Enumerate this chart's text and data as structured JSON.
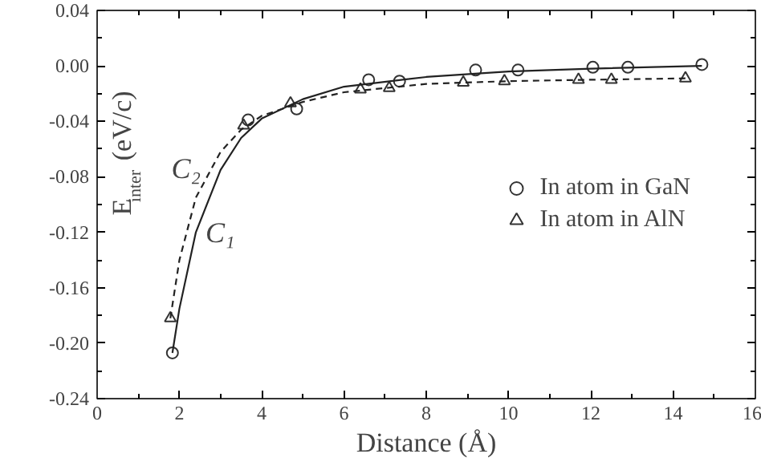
{
  "chart_data": {
    "type": "scatter",
    "xlabel": "Distance (Å)",
    "ylabel": "E$_{inter}$ (eV/c)",
    "xlim": [
      0,
      16
    ],
    "xticks": [
      0,
      2,
      4,
      6,
      8,
      10,
      12,
      14,
      16
    ],
    "ylim": [
      -0.24,
      0.04
    ],
    "yticks": [
      {
        "value": -0.24,
        "label": "-0.24"
      },
      {
        "value": -0.2,
        "label": "-0.20"
      },
      {
        "value": -0.16,
        "label": "-0.16"
      },
      {
        "value": -0.12,
        "label": "-0.12"
      },
      {
        "value": -0.08,
        "label": "-0.08"
      },
      {
        "value": -0.04,
        "label": "-0.04"
      },
      {
        "value": 0,
        "label": "0.00"
      },
      {
        "value": 0.04,
        "label": "0.04"
      }
    ],
    "grid": false,
    "legend": "right",
    "series": [
      {
        "name": "In atom in GaN",
        "color": "#333333",
        "marker": "circle",
        "x": [
          1.83,
          3.67,
          4.85,
          6.6,
          7.35,
          9.2,
          10.23,
          12.05,
          12.9,
          14.7
        ],
        "values": [
          -0.207,
          -0.039,
          -0.031,
          -0.01,
          -0.011,
          -0.003,
          -0.003,
          -0.001,
          -0.001,
          0.001
        ]
      },
      {
        "name": "In atom in AlN",
        "color": "#333333",
        "marker": "triangle",
        "x": [
          1.78,
          3.56,
          4.7,
          6.4,
          7.1,
          8.9,
          9.9,
          11.7,
          12.5,
          14.3
        ],
        "values": [
          -0.182,
          -0.043,
          -0.027,
          -0.017,
          -0.016,
          -0.012,
          -0.011,
          -0.01,
          -0.01,
          -0.009
        ]
      },
      {
        "type": "line",
        "color": "#222222",
        "line_style": "solid",
        "x": [
          1.83,
          2.0,
          2.4,
          3.0,
          3.5,
          4.0,
          5.0,
          6.0,
          8.0,
          10.0,
          12.0,
          14.7
        ],
        "values": [
          -0.207,
          -0.175,
          -0.12,
          -0.075,
          -0.052,
          -0.038,
          -0.024,
          -0.015,
          -0.008,
          -0.004,
          -0.002,
          0.0
        ]
      },
      {
        "type": "line",
        "color": "#222222",
        "line_style": "dashed",
        "x": [
          1.78,
          2.0,
          2.4,
          3.0,
          3.5,
          4.0,
          5.0,
          6.0,
          8.0,
          10.0,
          12.0,
          14.3
        ],
        "values": [
          -0.182,
          -0.14,
          -0.095,
          -0.062,
          -0.046,
          -0.036,
          -0.026,
          -0.019,
          -0.013,
          -0.011,
          -0.01,
          -0.009
        ]
      }
    ],
    "annotations": [
      {
        "text": "C₂",
        "x": 2.75,
        "y": -0.074
      },
      {
        "text": "C₁",
        "x": 2.4,
        "y": -0.12
      }
    ]
  }
}
